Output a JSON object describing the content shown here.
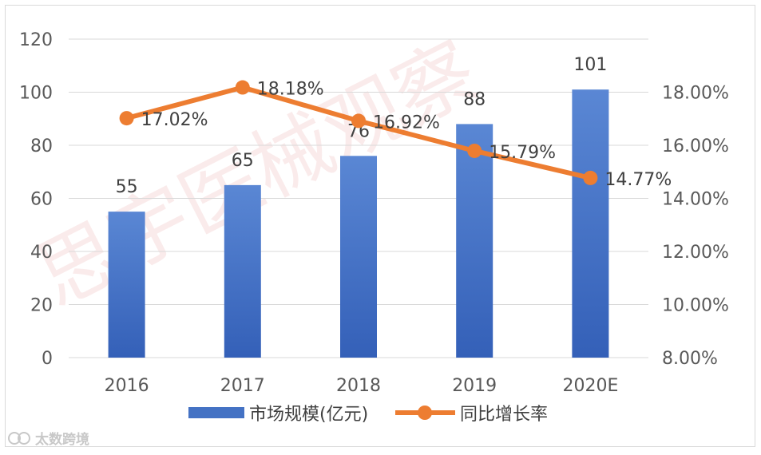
{
  "chart_data": {
    "type": "bar+line",
    "categories": [
      "2016",
      "2017",
      "2018",
      "2019",
      "2020E"
    ],
    "series": [
      {
        "name": "市场规模(亿元)",
        "type": "bar",
        "axis": "left",
        "values": [
          55,
          65,
          76,
          88,
          101
        ],
        "labels": [
          "55",
          "65",
          "76",
          "88",
          "101"
        ],
        "color": "#4472c4"
      },
      {
        "name": "同比增长率",
        "type": "line",
        "axis": "right",
        "values": [
          17.02,
          18.18,
          16.92,
          15.79,
          14.77
        ],
        "labels": [
          "17.02%",
          "18.18%",
          "16.92%",
          "15.79%",
          "14.77%"
        ],
        "color": "#ed7d31"
      }
    ],
    "y_left": {
      "range": [
        0,
        120
      ],
      "ticks": [
        "0",
        "20",
        "40",
        "60",
        "80",
        "100",
        "120"
      ]
    },
    "y_right": {
      "range": [
        8,
        20
      ],
      "ticks": [
        "8.00%",
        "10.00%",
        "12.00%",
        "14.00%",
        "16.00%",
        "18.00%"
      ]
    },
    "grid": true,
    "legend_position": "bottom"
  },
  "watermark": {
    "text": "思宇医械观察"
  },
  "corner_logo": {
    "text": "太数跨境"
  }
}
